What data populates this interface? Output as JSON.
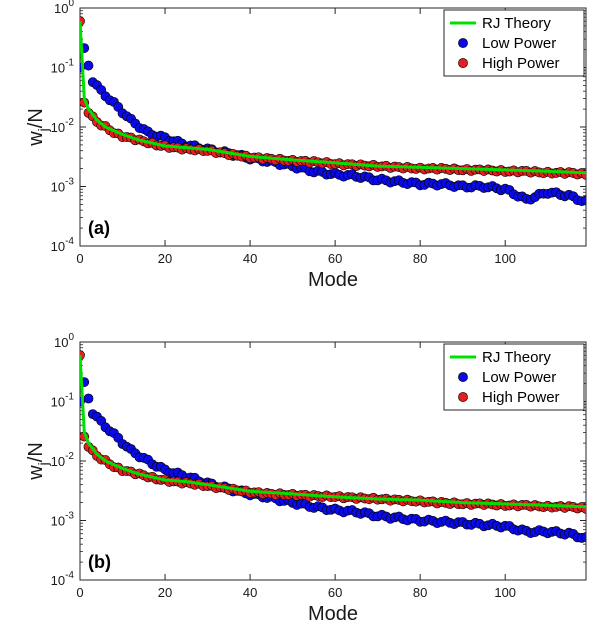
{
  "chart_data": [
    {
      "type": "scatter",
      "panel_label": "(a)",
      "xlabel": "Mode",
      "ylabel_main": "w",
      "ylabel_sub": "j",
      "ylabel_tail": "/N",
      "xlim": [
        0,
        119
      ],
      "ylim": [
        0.0001,
        1
      ],
      "yscale": "log",
      "x_ticks": [
        "0",
        "20",
        "40",
        "60",
        "80",
        "100"
      ],
      "x_tick_values": [
        0,
        20,
        40,
        60,
        80,
        100
      ],
      "y_ticks": [
        {
          "base": "10",
          "exp": "-4",
          "value": 0.0001
        },
        {
          "base": "10",
          "exp": "-3",
          "value": 0.001
        },
        {
          "base": "10",
          "exp": "-2",
          "value": 0.01
        },
        {
          "base": "10",
          "exp": "-1",
          "value": 0.1
        },
        {
          "base": "10",
          "exp": "0",
          "value": 1
        }
      ],
      "legend_position": "top-right",
      "series": [
        {
          "name": "RJ Theory",
          "kind": "line",
          "color": "#00e000",
          "points": [
            [
              0,
              0.6
            ],
            [
              1,
              0.03
            ],
            [
              2,
              0.02
            ],
            [
              4,
              0.013
            ],
            [
              6,
              0.01
            ],
            [
              10,
              0.0075
            ],
            [
              14,
              0.006
            ],
            [
              20,
              0.0048
            ],
            [
              25,
              0.0045
            ],
            [
              30,
              0.0042
            ],
            [
              40,
              0.0032
            ],
            [
              50,
              0.0028
            ],
            [
              60,
              0.0025
            ],
            [
              70,
              0.0022
            ],
            [
              80,
              0.0021
            ],
            [
              90,
              0.002
            ],
            [
              100,
              0.0019
            ],
            [
              110,
              0.0018
            ],
            [
              119,
              0.0017
            ]
          ]
        },
        {
          "name": "Low Power",
          "kind": "markers",
          "color": "#0a0ae6",
          "points": [
            [
              0,
              0.1
            ],
            [
              1,
              0.2
            ],
            [
              3,
              0.06
            ],
            [
              5,
              0.04
            ],
            [
              8,
              0.025
            ],
            [
              12,
              0.013
            ],
            [
              16,
              0.008
            ],
            [
              20,
              0.0065
            ],
            [
              25,
              0.005
            ],
            [
              30,
              0.0042
            ],
            [
              35,
              0.0036
            ],
            [
              40,
              0.003
            ],
            [
              45,
              0.0026
            ],
            [
              50,
              0.0022
            ],
            [
              55,
              0.0018
            ],
            [
              60,
              0.0016
            ],
            [
              65,
              0.0015
            ],
            [
              70,
              0.0013
            ],
            [
              75,
              0.0012
            ],
            [
              80,
              0.0011
            ],
            [
              85,
              0.0011
            ],
            [
              90,
              0.001
            ],
            [
              95,
              0.001
            ],
            [
              100,
              0.0009
            ],
            [
              105,
              0.0006
            ],
            [
              110,
              0.0008
            ],
            [
              115,
              0.0007
            ],
            [
              119,
              0.00055
            ]
          ]
        },
        {
          "name": "High Power",
          "kind": "markers",
          "color": "#e61e1e",
          "points": [
            [
              0,
              0.6
            ],
            [
              1,
              0.025
            ],
            [
              2,
              0.018
            ],
            [
              4,
              0.012
            ],
            [
              6,
              0.01
            ],
            [
              8,
              0.008
            ],
            [
              10,
              0.007
            ],
            [
              14,
              0.006
            ],
            [
              18,
              0.005
            ],
            [
              22,
              0.0045
            ],
            [
              26,
              0.0042
            ],
            [
              30,
              0.004
            ],
            [
              35,
              0.0035
            ],
            [
              40,
              0.0031
            ],
            [
              45,
              0.0029
            ],
            [
              50,
              0.0027
            ],
            [
              55,
              0.0026
            ],
            [
              60,
              0.0024
            ],
            [
              65,
              0.0023
            ],
            [
              70,
              0.0022
            ],
            [
              75,
              0.0021
            ],
            [
              80,
              0.002
            ],
            [
              85,
              0.002
            ],
            [
              90,
              0.0019
            ],
            [
              95,
              0.0019
            ],
            [
              100,
              0.0018
            ],
            [
              105,
              0.0018
            ],
            [
              110,
              0.0017
            ],
            [
              115,
              0.0017
            ],
            [
              119,
              0.0016
            ]
          ]
        }
      ]
    },
    {
      "type": "scatter",
      "panel_label": "(b)",
      "xlabel": "Mode",
      "ylabel_main": "w",
      "ylabel_sub": "j",
      "ylabel_tail": "/N",
      "xlim": [
        0,
        119
      ],
      "ylim": [
        0.0001,
        1
      ],
      "yscale": "log",
      "x_ticks": [
        "0",
        "20",
        "40",
        "60",
        "80",
        "100"
      ],
      "x_tick_values": [
        0,
        20,
        40,
        60,
        80,
        100
      ],
      "y_ticks": [
        {
          "base": "10",
          "exp": "-4",
          "value": 0.0001
        },
        {
          "base": "10",
          "exp": "-3",
          "value": 0.001
        },
        {
          "base": "10",
          "exp": "-2",
          "value": 0.01
        },
        {
          "base": "10",
          "exp": "-1",
          "value": 0.1
        },
        {
          "base": "10",
          "exp": "0",
          "value": 1
        }
      ],
      "legend_position": "top-right",
      "series": [
        {
          "name": "RJ Theory",
          "kind": "line",
          "color": "#00e000",
          "points": [
            [
              0,
              0.6
            ],
            [
              1,
              0.03
            ],
            [
              2,
              0.02
            ],
            [
              4,
              0.013
            ],
            [
              6,
              0.01
            ],
            [
              10,
              0.0075
            ],
            [
              14,
              0.006
            ],
            [
              20,
              0.0048
            ],
            [
              25,
              0.0045
            ],
            [
              30,
              0.004
            ],
            [
              40,
              0.0031
            ],
            [
              50,
              0.0028
            ],
            [
              60,
              0.0025
            ],
            [
              70,
              0.0023
            ],
            [
              80,
              0.0022
            ],
            [
              90,
              0.002
            ],
            [
              100,
              0.0019
            ],
            [
              110,
              0.0018
            ],
            [
              119,
              0.0017
            ]
          ]
        },
        {
          "name": "Low Power",
          "kind": "markers",
          "color": "#0a0ae6",
          "points": [
            [
              0,
              0.1
            ],
            [
              1,
              0.2
            ],
            [
              3,
              0.065
            ],
            [
              5,
              0.045
            ],
            [
              8,
              0.028
            ],
            [
              12,
              0.015
            ],
            [
              16,
              0.01
            ],
            [
              20,
              0.007
            ],
            [
              25,
              0.0055
            ],
            [
              30,
              0.0042
            ],
            [
              35,
              0.0034
            ],
            [
              40,
              0.0028
            ],
            [
              45,
              0.0024
            ],
            [
              50,
              0.002
            ],
            [
              55,
              0.0017
            ],
            [
              60,
              0.0015
            ],
            [
              65,
              0.0014
            ],
            [
              70,
              0.0012
            ],
            [
              75,
              0.0011
            ],
            [
              80,
              0.001
            ],
            [
              85,
              0.00095
            ],
            [
              90,
              0.0009
            ],
            [
              95,
              0.00085
            ],
            [
              100,
              0.0008
            ],
            [
              105,
              0.00065
            ],
            [
              110,
              0.00065
            ],
            [
              115,
              0.0006
            ],
            [
              119,
              0.0005
            ]
          ]
        },
        {
          "name": "High Power",
          "kind": "markers",
          "color": "#e61e1e",
          "points": [
            [
              0,
              0.6
            ],
            [
              1,
              0.025
            ],
            [
              2,
              0.018
            ],
            [
              4,
              0.012
            ],
            [
              6,
              0.01
            ],
            [
              8,
              0.008
            ],
            [
              10,
              0.007
            ],
            [
              14,
              0.006
            ],
            [
              18,
              0.005
            ],
            [
              22,
              0.0045
            ],
            [
              26,
              0.0042
            ],
            [
              30,
              0.0038
            ],
            [
              35,
              0.0034
            ],
            [
              40,
              0.003
            ],
            [
              45,
              0.0028
            ],
            [
              50,
              0.0027
            ],
            [
              55,
              0.0026
            ],
            [
              60,
              0.0025
            ],
            [
              65,
              0.0024
            ],
            [
              70,
              0.0023
            ],
            [
              75,
              0.0022
            ],
            [
              80,
              0.0021
            ],
            [
              85,
              0.002
            ],
            [
              90,
              0.0019
            ],
            [
              95,
              0.0019
            ],
            [
              100,
              0.0018
            ],
            [
              105,
              0.0018
            ],
            [
              110,
              0.0017
            ],
            [
              115,
              0.0017
            ],
            [
              119,
              0.0016
            ]
          ]
        }
      ]
    }
  ]
}
